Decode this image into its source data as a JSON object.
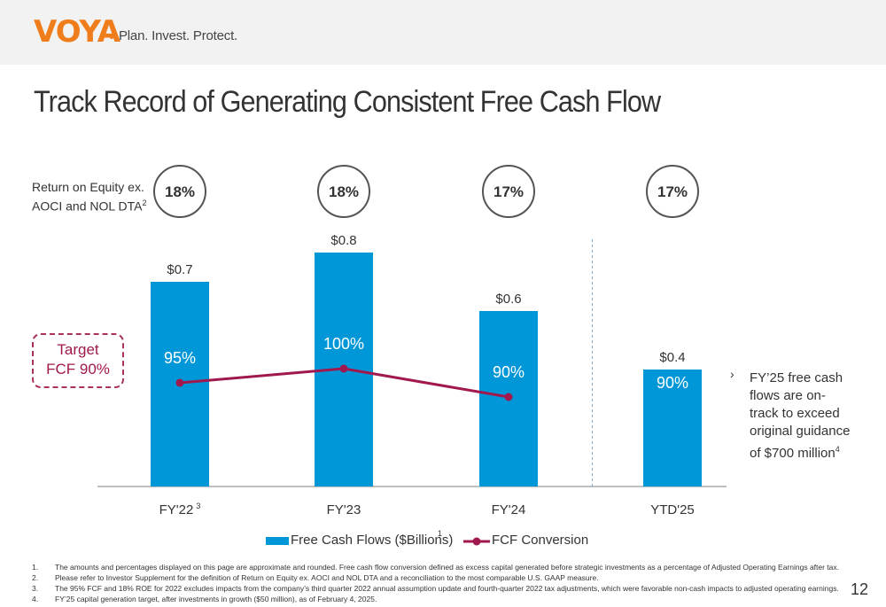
{
  "header": {
    "logo_text": "VOYA",
    "tagline": "Plan. Invest. Protect."
  },
  "title": "Track Record of Generating Consistent Free Cash Flow",
  "roe_label": {
    "line1": "Return on Equity ex.",
    "line2": "AOCI and NOL DTA",
    "sup": "2"
  },
  "target_box": {
    "line1": "Target",
    "line2": "FCF 90%"
  },
  "note": {
    "arrow": "›",
    "lines": [
      "FY’25 free cash",
      "flows are on-",
      "track to exceed",
      "original guidance",
      "of $700 million"
    ],
    "sup": "4"
  },
  "chart_data": {
    "type": "bar",
    "categories": [
      "FY'22",
      "FY'23",
      "FY'24",
      "YTD'25"
    ],
    "category_sups": [
      "3",
      "",
      "",
      ""
    ],
    "series": [
      {
        "name": "Free Cash Flows ($Billions)",
        "type": "bar",
        "values": [
          0.7,
          0.8,
          0.6,
          0.4
        ],
        "labels": [
          "$0.7",
          "$0.8",
          "$0.6",
          "$0.4"
        ],
        "color": "#0097d8"
      },
      {
        "name": "FCF Conversion",
        "type": "line",
        "values": [
          95,
          100,
          90,
          90
        ],
        "labels": [
          "95%",
          "100%",
          "90%",
          "90%"
        ],
        "color": "#a0184e",
        "line_points": 3
      }
    ],
    "roe": [
      "18%",
      "18%",
      "17%",
      "17%"
    ],
    "divider_before_index": 3
  },
  "legend": {
    "bar_label": "Free Cash Flows ($Billions)",
    "bar_sup": "1",
    "line_label": "FCF Conversion"
  },
  "footnotes": [
    {
      "num": "1.",
      "text": "The amounts and percentages displayed on this page are approximate and rounded. Free cash flow conversion defined as excess capital generated before strategic investments as a percentage of Adjusted Operating Earnings after tax."
    },
    {
      "num": "2.",
      "text": "Please refer to Investor Supplement for the definition of Return on Equity ex. AOCI and NOL DTA and a reconciliation to the most comparable U.S. GAAP measure."
    },
    {
      "num": "3.",
      "text": "The 95% FCF and 18% ROE for 2022 excludes impacts from the company’s third quarter 2022 annual assumption update and fourth-quarter 2022 tax adjustments, which were favorable non-cash impacts to adjusted operating earnings."
    },
    {
      "num": "4.",
      "text": "FY’25 capital generation target, after investments in growth ($50 million), as of February 4, 2025."
    }
  ],
  "page_number": "12",
  "colors": {
    "bar": "#0097d8",
    "line": "#a0184e",
    "brand_orange": "#f07d1b"
  }
}
